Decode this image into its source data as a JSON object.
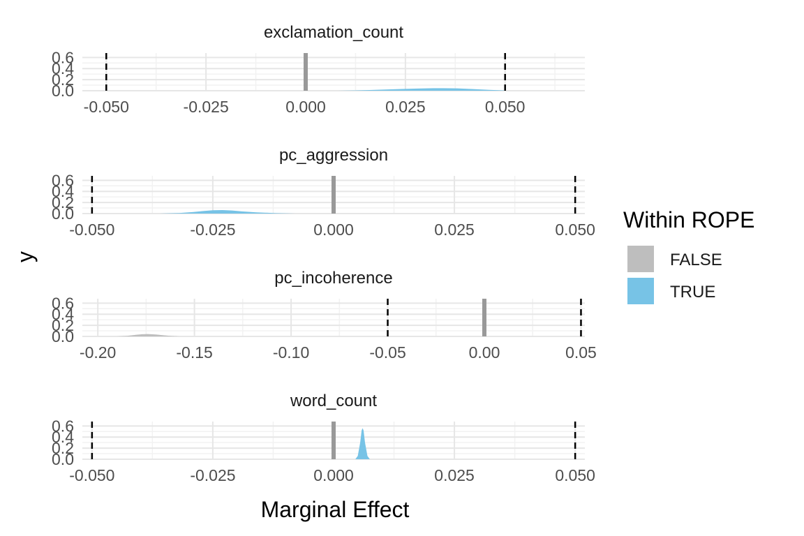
{
  "chart_data": {
    "type": "area",
    "chart_kind": "faceted density plot",
    "xlabel": "Marginal Effect",
    "ylabel": "y",
    "grid": true,
    "legend": {
      "title": "Within ROPE",
      "position": "right",
      "entries": [
        {
          "label": "FALSE",
          "color": "#bebebe"
        },
        {
          "label": "TRUE",
          "color": "#77c3e6"
        }
      ]
    },
    "rope_lines": {
      "style": "dashed",
      "color": "#000000"
    },
    "zero_line": {
      "value": 0,
      "color": "#999999"
    },
    "facets": [
      {
        "title": "exclamation_count",
        "xlim": [
          -0.056,
          0.07
        ],
        "ylim": [
          0,
          0.68
        ],
        "x_ticks": [
          -0.05,
          -0.025,
          0,
          0.025,
          0.05
        ],
        "x_tick_labels": [
          "-0.050",
          "-0.025",
          "0.000",
          "0.025",
          "0.050"
        ],
        "y_ticks": [
          0,
          0.2,
          0.4,
          0.6
        ],
        "y_tick_labels": [
          "0.0",
          "0.2",
          "0.4",
          "0.6"
        ],
        "rope": [
          -0.05,
          0.05
        ],
        "density": {
          "x": [
            0.008,
            0.012,
            0.016,
            0.02,
            0.024,
            0.028,
            0.032,
            0.034,
            0.038,
            0.042,
            0.046,
            0.05
          ],
          "y": [
            0.0,
            0.004,
            0.012,
            0.022,
            0.032,
            0.04,
            0.045,
            0.046,
            0.042,
            0.03,
            0.015,
            0.004
          ]
        },
        "within_rope": "TRUE"
      },
      {
        "title": "pc_aggression",
        "xlim": [
          -0.052,
          0.052
        ],
        "ylim": [
          0,
          0.68
        ],
        "x_ticks": [
          -0.05,
          -0.025,
          0,
          0.025,
          0.05
        ],
        "x_tick_labels": [
          "-0.050",
          "-0.025",
          "0.000",
          "0.025",
          "0.050"
        ],
        "y_ticks": [
          0,
          0.2,
          0.4,
          0.6
        ],
        "y_tick_labels": [
          "0.0",
          "0.2",
          "0.4",
          "0.6"
        ],
        "rope": [
          -0.05,
          0.05
        ],
        "density": {
          "x": [
            -0.036,
            -0.032,
            -0.029,
            -0.027,
            -0.025,
            -0.023,
            -0.021,
            -0.019,
            -0.016,
            -0.012,
            -0.008
          ],
          "y": [
            0.0,
            0.01,
            0.028,
            0.045,
            0.06,
            0.063,
            0.055,
            0.04,
            0.022,
            0.008,
            0.0
          ]
        },
        "within_rope": "TRUE"
      },
      {
        "title": "pc_incoherence",
        "xlim": [
          -0.208,
          0.052
        ],
        "ylim": [
          0,
          0.68
        ],
        "x_ticks": [
          -0.2,
          -0.15,
          -0.1,
          -0.05,
          0,
          0.05
        ],
        "x_tick_labels": [
          "-0.20",
          "-0.15",
          "-0.10",
          "-0.05",
          "0.00",
          "0.05"
        ],
        "y_ticks": [
          0,
          0.2,
          0.4,
          0.6
        ],
        "y_tick_labels": [
          "0.0",
          "0.2",
          "0.4",
          "0.6"
        ],
        "rope": [
          -0.05,
          0.05
        ],
        "density": {
          "x": [
            -0.19,
            -0.185,
            -0.18,
            -0.177,
            -0.174,
            -0.17,
            -0.166,
            -0.162,
            -0.158
          ],
          "y": [
            0.0,
            0.01,
            0.03,
            0.04,
            0.042,
            0.035,
            0.02,
            0.008,
            0.0
          ]
        },
        "within_rope": "FALSE"
      },
      {
        "title": "word_count",
        "xlim": [
          -0.052,
          0.052
        ],
        "ylim": [
          0,
          0.68
        ],
        "x_ticks": [
          -0.05,
          -0.025,
          0,
          0.025,
          0.05
        ],
        "x_tick_labels": [
          "-0.050",
          "-0.025",
          "0.000",
          "0.025",
          "0.050"
        ],
        "y_ticks": [
          0,
          0.2,
          0.4,
          0.6
        ],
        "y_tick_labels": [
          "0.0",
          "0.2",
          "0.4",
          "0.6"
        ],
        "rope": [
          -0.05,
          0.05
        ],
        "density": {
          "x": [
            0.0045,
            0.005,
            0.0055,
            0.0058,
            0.006,
            0.0062,
            0.0065,
            0.007,
            0.0075
          ],
          "y": [
            0.0,
            0.06,
            0.3,
            0.52,
            0.56,
            0.52,
            0.3,
            0.06,
            0.0
          ]
        },
        "within_rope": "TRUE"
      }
    ]
  }
}
